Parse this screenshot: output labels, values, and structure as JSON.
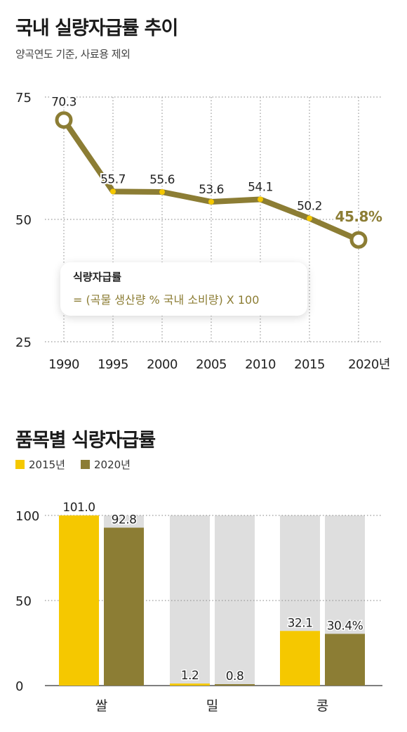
{
  "chart1": {
    "title": "국내 실량자급률 추이",
    "subtitle": "양곡연도 기준, 사료용 제외",
    "formula": {
      "title": "식량자급률",
      "text": "= (곡물 생산량 % 국내 소비량) X 100"
    }
  },
  "chart2": {
    "title": "품목별 식량자급률"
  },
  "colors": {
    "olive": "#8c7d34",
    "yellow": "#f5c800",
    "grey_bar": "#dedede",
    "grid": "#999999"
  },
  "chart_data": [
    {
      "type": "line",
      "title": "국내 실량자급률 추이",
      "subtitle": "양곡연도 기준, 사료용 제외",
      "x": [
        "1990",
        "1995",
        "2000",
        "2005",
        "2010",
        "2015",
        "2020년"
      ],
      "values": [
        70.3,
        55.7,
        55.6,
        53.6,
        54.1,
        50.2,
        45.8
      ],
      "data_labels": [
        "70.3",
        "55.7",
        "55.6",
        "53.6",
        "54.1",
        "50.2",
        "45.8%"
      ],
      "yticks": [
        "25",
        "50",
        "75"
      ],
      "ylim": [
        25,
        75
      ],
      "grid": true
    },
    {
      "type": "bar",
      "title": "품목별 식량자급률",
      "categories": [
        "쌀",
        "밀",
        "콩"
      ],
      "series": [
        {
          "name": "2015년",
          "values": [
            101.0,
            1.2,
            32.1
          ],
          "labels": [
            "101.0",
            "1.2",
            "32.1"
          ]
        },
        {
          "name": "2020년",
          "values": [
            92.8,
            0.8,
            30.4
          ],
          "labels": [
            "92.8",
            "0.8",
            "30.4%"
          ]
        }
      ],
      "yticks": [
        "0",
        "50",
        "100"
      ],
      "ylim": [
        0,
        100
      ],
      "grid": true,
      "legend": "top-left"
    }
  ]
}
